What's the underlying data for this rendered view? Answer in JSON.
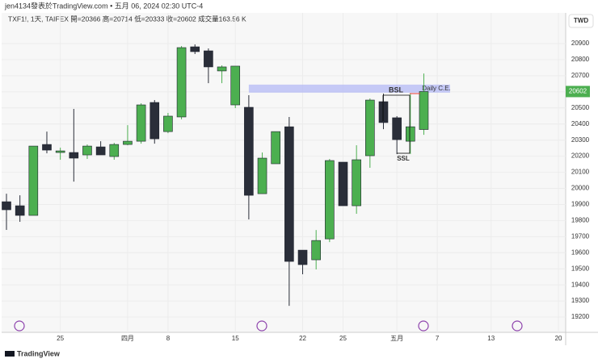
{
  "header": {
    "attribution": "jen4134發表於TradingView.com • 五月 06, 2024 02:30 UTC-4",
    "legend": "TXF1!, 1天, TAIFEX  開=20366  高=20714  低=20333  收=20602  成交量163.56 K",
    "currency": "TWD",
    "footer": "TradingView"
  },
  "chart_data": {
    "type": "candlestick",
    "categories": [
      null,
      null,
      null,
      null,
      "25",
      null,
      null,
      null,
      null,
      "四月",
      null,
      null,
      "8",
      null,
      null,
      null,
      null,
      "15",
      null,
      null,
      null,
      null,
      "22",
      null,
      null,
      "25",
      null,
      null,
      null,
      "五月",
      null,
      null,
      "7",
      null,
      null,
      null,
      "13",
      null,
      null,
      null,
      null,
      "20"
    ],
    "open": [
      19917,
      19892,
      19832,
      20273,
      20223,
      20223,
      20208,
      20258,
      20198,
      20273,
      20293,
      20534,
      20353,
      20444,
      20880,
      20855,
      20730,
      20519,
      20504,
      19967,
      20153,
      20383,
      19616,
      19556,
      19686,
      20163,
      19892,
      20203,
      20539,
      20439,
      20293,
      20366,
      null,
      null,
      null,
      null,
      null,
      null,
      null,
      null,
      null,
      null
    ],
    "high": [
      19967,
      19957,
      20263,
      20353,
      20253,
      20494,
      20273,
      20293,
      20283,
      20393,
      20529,
      20549,
      20469,
      20885,
      20895,
      20870,
      20765,
      20760,
      20579,
      20223,
      20353,
      20444,
      19616,
      19741,
      20183,
      20163,
      20268,
      20559,
      20589,
      20449,
      20589,
      20714,
      null,
      null,
      null,
      null,
      null,
      null,
      null,
      null,
      null,
      null
    ],
    "low": [
      19742,
      19792,
      19832,
      20218,
      20178,
      20042,
      20183,
      20208,
      20178,
      20268,
      20278,
      20278,
      20343,
      20429,
      20835,
      20654,
      20654,
      20499,
      19807,
      19967,
      20153,
      19270,
      19466,
      19496,
      19666,
      19892,
      19842,
      20128,
      20368,
      20213,
      20213,
      20333,
      null,
      null,
      null,
      null,
      null,
      null,
      null,
      null,
      null,
      null
    ],
    "close": [
      19867,
      19832,
      20263,
      20238,
      20233,
      20188,
      20263,
      20208,
      20273,
      20293,
      20519,
      20308,
      20449,
      20875,
      20850,
      20755,
      20755,
      20760,
      19957,
      20188,
      20353,
      19546,
      19526,
      19676,
      20173,
      19892,
      20178,
      20549,
      20409,
      20303,
      20383,
      20602,
      null,
      null,
      null,
      null,
      null,
      null,
      null,
      null,
      null,
      null
    ],
    "up_color": "#4caf50",
    "down_color": "#2a2e39",
    "ylim": [
      19115,
      21171
    ],
    "yticks": [
      19200,
      19300,
      19400,
      19500,
      19600,
      19700,
      19800,
      19900,
      20000,
      20100,
      20200,
      20300,
      20400,
      20500,
      20600,
      20700,
      20800,
      20900
    ],
    "zone": {
      "label": "Daily C.E.",
      "from": 20595,
      "to": 20645,
      "color": "#b8bdf5"
    },
    "annotations": [
      "BSL",
      "SSL"
    ],
    "grid": true
  }
}
